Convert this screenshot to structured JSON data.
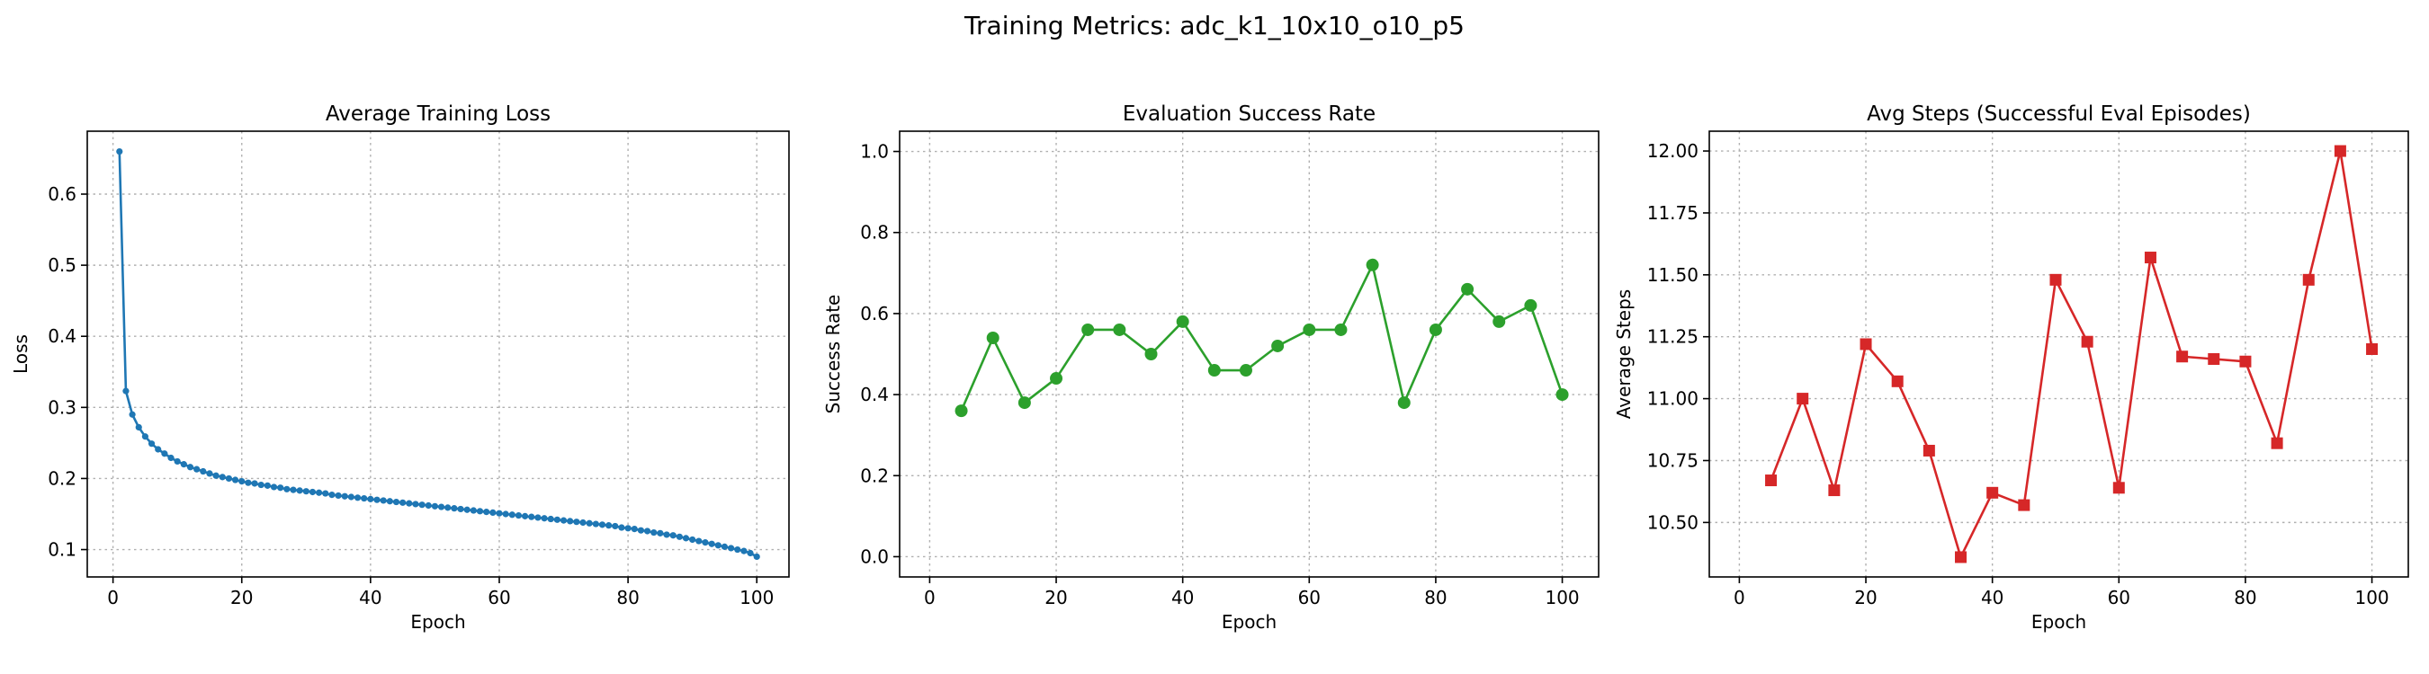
{
  "figure": {
    "suptitle": "Training Metrics: adc_k1_10x10_o10_p5"
  },
  "chart_data": [
    {
      "type": "line",
      "title": "Average Training Loss",
      "xlabel": "Epoch",
      "ylabel": "Loss",
      "xlim": [
        -4,
        105
      ],
      "ylim": [
        0.0615,
        0.6885
      ],
      "xticks": [
        0,
        20,
        40,
        60,
        80,
        100
      ],
      "yticks": [
        0.1,
        0.2,
        0.3,
        0.4,
        0.5,
        0.6
      ],
      "ytick_decimals": 1,
      "grid": true,
      "marker": "circle-small",
      "color": "#1f77b4",
      "series": [
        {
          "x": [
            1,
            2,
            3,
            4,
            5,
            6,
            7,
            8,
            9,
            10,
            11,
            12,
            13,
            14,
            15,
            16,
            17,
            18,
            19,
            20,
            21,
            22,
            23,
            24,
            25,
            26,
            27,
            28,
            29,
            30,
            31,
            32,
            33,
            34,
            35,
            36,
            37,
            38,
            39,
            40,
            41,
            42,
            43,
            44,
            45,
            46,
            47,
            48,
            49,
            50,
            51,
            52,
            53,
            54,
            55,
            56,
            57,
            58,
            59,
            60,
            61,
            62,
            63,
            64,
            65,
            66,
            67,
            68,
            69,
            70,
            71,
            72,
            73,
            74,
            75,
            76,
            77,
            78,
            79,
            80,
            81,
            82,
            83,
            84,
            85,
            86,
            87,
            88,
            89,
            90,
            91,
            92,
            93,
            94,
            95,
            96,
            97,
            98,
            99,
            100
          ],
          "values": [
            0.66,
            0.323,
            0.29,
            0.272,
            0.259,
            0.249,
            0.241,
            0.235,
            0.229,
            0.224,
            0.22,
            0.216,
            0.213,
            0.21,
            0.207,
            0.204,
            0.202,
            0.2,
            0.198,
            0.196,
            0.194,
            0.193,
            0.191,
            0.19,
            0.188,
            0.187,
            0.185,
            0.184,
            0.183,
            0.182,
            0.181,
            0.18,
            0.179,
            0.177,
            0.176,
            0.175,
            0.174,
            0.173,
            0.172,
            0.171,
            0.17,
            0.169,
            0.168,
            0.167,
            0.166,
            0.165,
            0.164,
            0.163,
            0.162,
            0.161,
            0.16,
            0.159,
            0.158,
            0.157,
            0.156,
            0.155,
            0.154,
            0.153,
            0.152,
            0.151,
            0.15,
            0.149,
            0.148,
            0.147,
            0.146,
            0.145,
            0.144,
            0.143,
            0.142,
            0.141,
            0.14,
            0.139,
            0.138,
            0.137,
            0.136,
            0.135,
            0.134,
            0.133,
            0.131,
            0.13,
            0.129,
            0.127,
            0.126,
            0.124,
            0.123,
            0.121,
            0.12,
            0.118,
            0.116,
            0.114,
            0.112,
            0.11,
            0.108,
            0.106,
            0.104,
            0.102,
            0.1,
            0.098,
            0.095,
            0.09
          ]
        }
      ]
    },
    {
      "type": "line",
      "title": "Evaluation Success Rate",
      "xlabel": "Epoch",
      "ylabel": "Success Rate",
      "xlim": [
        -4.75,
        105.75
      ],
      "ylim": [
        -0.05,
        1.05
      ],
      "xticks": [
        0,
        20,
        40,
        60,
        80,
        100
      ],
      "yticks": [
        0.0,
        0.2,
        0.4,
        0.6,
        0.8,
        1.0
      ],
      "ytick_decimals": 1,
      "grid": true,
      "marker": "circle",
      "color": "#2ca02c",
      "series": [
        {
          "x": [
            5,
            10,
            15,
            20,
            25,
            30,
            35,
            40,
            45,
            50,
            55,
            60,
            65,
            70,
            75,
            80,
            85,
            90,
            95,
            100
          ],
          "values": [
            0.36,
            0.54,
            0.38,
            0.44,
            0.56,
            0.56,
            0.5,
            0.58,
            0.46,
            0.46,
            0.52,
            0.56,
            0.56,
            0.72,
            0.38,
            0.56,
            0.66,
            0.58,
            0.62,
            0.4
          ]
        }
      ]
    },
    {
      "type": "line",
      "title": "Avg Steps (Successful Eval Episodes)",
      "xlabel": "Epoch",
      "ylabel": "Average Steps",
      "xlim": [
        -4.75,
        105.75
      ],
      "ylim": [
        10.28,
        12.08
      ],
      "xticks": [
        0,
        20,
        40,
        60,
        80,
        100
      ],
      "yticks": [
        10.5,
        10.75,
        11.0,
        11.25,
        11.5,
        11.75,
        12.0
      ],
      "ytick_decimals": 2,
      "grid": true,
      "marker": "square",
      "color": "#d62728",
      "series": [
        {
          "x": [
            5,
            10,
            15,
            20,
            25,
            30,
            35,
            40,
            45,
            50,
            55,
            60,
            65,
            70,
            75,
            80,
            85,
            90,
            95,
            100
          ],
          "values": [
            10.67,
            11.0,
            10.63,
            11.22,
            11.07,
            10.79,
            10.36,
            10.62,
            10.57,
            11.48,
            11.23,
            10.64,
            11.57,
            11.17,
            11.16,
            11.15,
            10.82,
            11.48,
            12.0,
            11.2
          ]
        }
      ]
    }
  ]
}
